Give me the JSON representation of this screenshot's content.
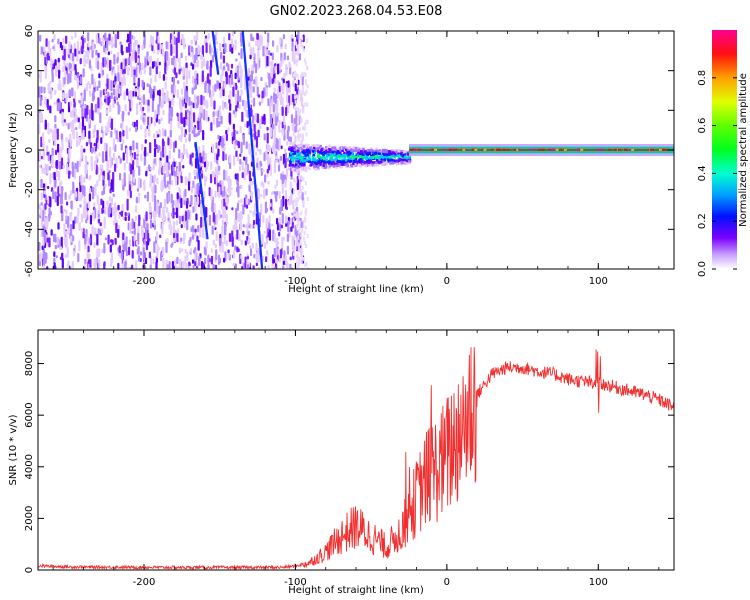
{
  "figure_title": "GN02.2023.268.04.53.E08",
  "colors": {
    "snr_line": "#f03030",
    "axis": "#000000",
    "spectrogram_cmap": [
      "#ffffff",
      "#e6c8ff",
      "#a070ff",
      "#6a00ff",
      "#0020ff",
      "#00c8ff",
      "#00ff60",
      "#c8ff00",
      "#ffb000",
      "#ff0000",
      "#ff0080"
    ]
  },
  "chart_data": [
    {
      "type": "heatmap",
      "xlabel": "Height of straight line (km)",
      "ylabel": "Frequency (Hz)",
      "xlim": [
        -270,
        150
      ],
      "ylim": [
        -60,
        60
      ],
      "xticks": [
        -200,
        -100,
        0,
        100
      ],
      "yticks": [
        -60,
        -40,
        -20,
        0,
        20,
        40,
        60
      ],
      "xtick_labels": [
        "-200",
        "-100",
        "0",
        "100"
      ],
      "ytick_labels": [
        "-60",
        "-40",
        "-20",
        "0",
        "20",
        "40",
        "60"
      ],
      "colorbar": {
        "label": "Normalized spectral amplitude",
        "range": [
          0,
          1
        ],
        "ticks": [
          0.0,
          0.2,
          0.4,
          0.6,
          0.8
        ],
        "tick_labels": [
          "0.0",
          "0.2",
          "0.4",
          "0.6",
          "0.8"
        ]
      },
      "regions": [
        {
          "description_kind": "broadband_noise",
          "x_range": [
            -270,
            -100
          ],
          "freq_range": [
            -60,
            60
          ],
          "amplitude": 0.15
        },
        {
          "description_kind": "signal_onset_blob",
          "x_range": [
            -105,
            -25
          ],
          "center_freq": -3,
          "half_width_hz": 7,
          "peak_amplitude": 0.5
        },
        {
          "description_kind": "narrow_line",
          "x_range": [
            -25,
            150
          ],
          "center_freq": 0,
          "half_width_hz": 3,
          "core_amplitude": 0.9
        }
      ],
      "interference_streaks": [
        {
          "x_start": -135,
          "x_end": -122,
          "freq_start": 62,
          "freq_end": -60
        },
        {
          "x_start": -166,
          "x_end": -158,
          "freq_start": 4,
          "freq_end": -45
        },
        {
          "x_start": -155,
          "x_end": -151,
          "freq_start": 62,
          "freq_end": 38
        }
      ]
    },
    {
      "type": "line",
      "xlabel": "Height of straight line (km)",
      "ylabel": "SNR (10 * v/v)",
      "xlim": [
        -270,
        150
      ],
      "ylim": [
        0,
        9300
      ],
      "xticks": [
        -200,
        -100,
        0,
        100
      ],
      "yticks": [
        0,
        2000,
        4000,
        6000,
        8000
      ],
      "xtick_labels": [
        "-200",
        "-100",
        "0",
        "100"
      ],
      "ytick_labels": [
        "0",
        "2000",
        "4000",
        "6000",
        "8000"
      ],
      "series": [
        {
          "x": [
            -270,
            -250,
            -200,
            -150,
            -110,
            -100,
            -90,
            -80,
            -70,
            -60,
            -50,
            -40,
            -30,
            -20,
            -15,
            -10,
            -5,
            0,
            10,
            20,
            30,
            40,
            50,
            60,
            70,
            80,
            90,
            100,
            110,
            120,
            130,
            140,
            150
          ],
          "y": [
            160,
            120,
            100,
            100,
            100,
            150,
            300,
            700,
            1300,
            1700,
            1300,
            900,
            1500,
            2800,
            3400,
            3800,
            4000,
            4400,
            5600,
            6800,
            7600,
            7850,
            7850,
            7700,
            7600,
            7400,
            7300,
            7250,
            7100,
            6950,
            6800,
            6600,
            6300
          ]
        }
      ]
    }
  ]
}
